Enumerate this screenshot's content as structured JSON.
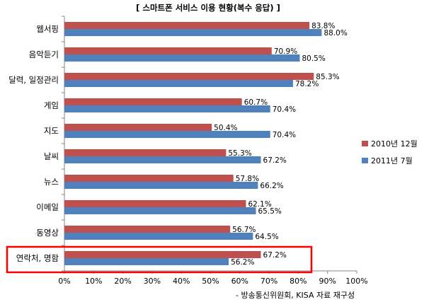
{
  "chart_data": {
    "type": "bar",
    "orientation": "horizontal",
    "title": "[ 스마트폰 서비스 이용 현황(복수 응답) ]",
    "categories": [
      "웹서핑",
      "음악듣기",
      "달력, 일정관리",
      "게임",
      "지도",
      "날씨",
      "뉴스",
      "이메일",
      "동영상",
      "연락처, 명함"
    ],
    "series": [
      {
        "name": "2010년 12월",
        "color": "#c0504d",
        "values": [
          83.8,
          70.9,
          85.3,
          60.7,
          50.4,
          55.3,
          57.8,
          62.1,
          56.7,
          67.2
        ],
        "labels": [
          "83.8%",
          "70.9%",
          "85.3%",
          "60.7%",
          "50.4%",
          "55.3%",
          "57.8%",
          "62.1%",
          "56.7%",
          "67.2%"
        ]
      },
      {
        "name": "2011년 7월",
        "color": "#4f81bd",
        "values": [
          88.0,
          80.5,
          78.2,
          70.4,
          70.4,
          67.2,
          66.2,
          65.5,
          64.5,
          56.2
        ],
        "labels": [
          "88.0%",
          "80.5%",
          "78.2%",
          "70.4%",
          "70.4%",
          "67.2%",
          "66.2%",
          "65.5%",
          "64.5%",
          "56.2%"
        ]
      }
    ],
    "xlim": [
      0,
      100
    ],
    "xticks": [
      "0%",
      "10%",
      "20%",
      "30%",
      "40%",
      "50%",
      "60%",
      "70%",
      "80%",
      "90%",
      "100%"
    ],
    "grid": false,
    "legend_position": "right",
    "highlighted_category": "연락처, 명함",
    "highlight_color": "#ff0000",
    "source_note": "- 방송통신위원회, KISA 자료 재구성"
  }
}
